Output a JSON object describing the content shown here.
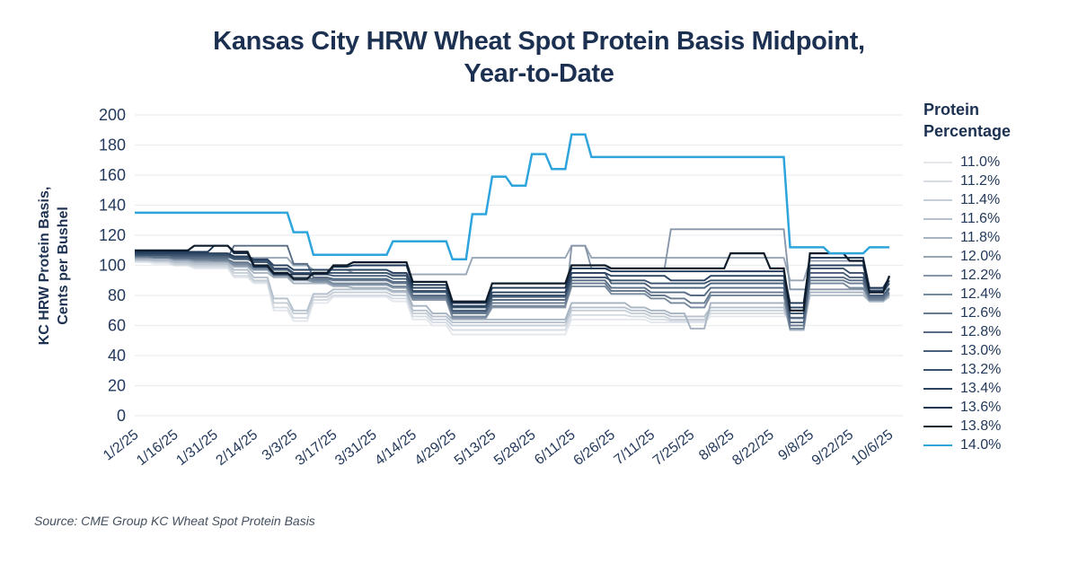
{
  "title": {
    "line1": "Kansas City HRW Wheat Spot Protein Basis Midpoint,",
    "line2": "Year-to-Date"
  },
  "y_axis": {
    "title_line1": "KC HRW Protein Basis,",
    "title_line2": "Cents per Bushel",
    "ticks": [
      0,
      20,
      40,
      60,
      80,
      100,
      120,
      140,
      160,
      180,
      200
    ]
  },
  "legend": {
    "title_line1": "Protein",
    "title_line2": "Percentage"
  },
  "source": "Source: CME Group KC Wheat Spot Protein Basis",
  "chart_data": {
    "type": "line",
    "title": "Kansas City HRW Wheat Spot Protein Basis Midpoint, Year-to-Date",
    "xlabel": "",
    "ylabel": "KC HRW Protein Basis, Cents per Bushel",
    "ylim": [
      0,
      200
    ],
    "ytick_step": 20,
    "grid": "horizontal",
    "legend_position": "right",
    "x_tick_labels": [
      "1/2/25",
      "1/16/25",
      "1/31/25",
      "2/14/25",
      "3/3/25",
      "3/17/25",
      "3/31/25",
      "4/14/25",
      "4/29/25",
      "5/13/25",
      "5/28/25",
      "6/11/25",
      "6/26/25",
      "7/11/25",
      "7/25/25",
      "8/8/25",
      "8/22/25",
      "9/8/25",
      "9/22/25",
      "10/6/25"
    ],
    "x": [
      "1/2/25",
      "1/9/25",
      "1/16/25",
      "1/23/25",
      "1/31/25",
      "2/7/25",
      "2/14/25",
      "2/21/25",
      "3/3/25",
      "3/10/25",
      "3/17/25",
      "3/24/25",
      "3/31/25",
      "4/7/25",
      "4/14/25",
      "4/21/25",
      "4/29/25",
      "5/6/25",
      "5/13/25",
      "5/20/25",
      "5/28/25",
      "6/4/25",
      "6/11/25",
      "6/18/25",
      "6/26/25",
      "7/3/25",
      "7/11/25",
      "7/18/25",
      "7/25/25",
      "8/1/25",
      "8/8/25",
      "8/15/25",
      "8/22/25",
      "9/1/25",
      "9/8/25",
      "9/15/25",
      "9/22/25",
      "9/29/25",
      "10/6/25"
    ],
    "series": [
      {
        "name": "11.0%",
        "color": "#E4E8ED",
        "values": [
          102,
          101,
          100,
          98,
          98,
          92,
          88,
          70,
          63,
          75,
          79,
          79,
          79,
          76,
          64,
          60,
          54,
          54,
          54,
          54,
          54,
          54,
          64,
          64,
          64,
          64,
          62,
          62,
          62,
          66,
          66,
          66,
          66,
          66,
          80,
          80,
          80,
          78,
          80
        ]
      },
      {
        "name": "11.2%",
        "color": "#D6DCE3",
        "values": [
          103,
          102,
          100,
          99,
          99,
          93,
          89,
          72,
          65,
          77,
          80,
          80,
          80,
          78,
          66,
          62,
          57,
          57,
          57,
          57,
          57,
          57,
          67,
          67,
          67,
          66,
          64,
          63,
          63,
          68,
          68,
          68,
          68,
          64,
          80,
          80,
          80,
          78,
          80
        ]
      },
      {
        "name": "11.4%",
        "color": "#C6CFD8",
        "values": [
          103,
          103,
          101,
          100,
          100,
          95,
          90,
          75,
          68,
          79,
          82,
          82,
          82,
          80,
          68,
          64,
          60,
          60,
          60,
          60,
          60,
          60,
          70,
          70,
          70,
          68,
          66,
          64,
          64,
          70,
          70,
          70,
          70,
          62,
          80,
          80,
          80,
          77,
          79
        ]
      },
      {
        "name": "11.6%",
        "color": "#B6C1CD",
        "values": [
          104,
          103,
          102,
          101,
          101,
          97,
          92,
          78,
          70,
          81,
          84,
          84,
          84,
          82,
          70,
          66,
          62,
          62,
          62,
          62,
          62,
          62,
          72,
          72,
          72,
          70,
          68,
          66,
          66,
          72,
          72,
          72,
          72,
          60,
          80,
          80,
          80,
          76,
          79
        ]
      },
      {
        "name": "11.8%",
        "color": "#A6B3C1",
        "values": [
          104,
          104,
          103,
          102,
          102,
          99,
          95,
          92,
          88,
          88,
          86,
          85,
          85,
          83,
          73,
          68,
          64,
          64,
          64,
          64,
          64,
          64,
          75,
          75,
          75,
          72,
          70,
          68,
          58,
          75,
          75,
          75,
          75,
          57,
          82,
          82,
          82,
          76,
          80
        ]
      },
      {
        "name": "12.0%",
        "color": "#97A5B5",
        "values": [
          105,
          105,
          105,
          105,
          105,
          105,
          105,
          105,
          100,
          97,
          97,
          95,
          95,
          94,
          94,
          94,
          94,
          105,
          105,
          105,
          105,
          105,
          113,
          105,
          105,
          105,
          105,
          105,
          105,
          105,
          105,
          105,
          105,
          90,
          103,
          103,
          103,
          84,
          84
        ]
      },
      {
        "name": "12.2%",
        "color": "#8797A9",
        "values": [
          105,
          105,
          104,
          103,
          103,
          100,
          97,
          93,
          90,
          89,
          87,
          87,
          87,
          85,
          77,
          77,
          65,
          65,
          72,
          72,
          72,
          72,
          113,
          98,
          98,
          98,
          98,
          124,
          124,
          124,
          124,
          124,
          124,
          84,
          84,
          84,
          84,
          80,
          82
        ]
      },
      {
        "name": "12.4%",
        "color": "#77899D",
        "values": [
          106,
          105,
          104,
          104,
          103,
          101,
          98,
          94,
          91,
          90,
          88,
          88,
          88,
          86,
          78,
          78,
          66,
          66,
          73,
          73,
          73,
          73,
          86,
          86,
          81,
          81,
          78,
          75,
          72,
          80,
          80,
          80,
          80,
          58,
          88,
          88,
          85,
          77,
          81
        ]
      },
      {
        "name": "12.6%",
        "color": "#687B91",
        "values": [
          106,
          105,
          105,
          104,
          104,
          102,
          99,
          95,
          92,
          91,
          90,
          90,
          90,
          88,
          79,
          79,
          68,
          68,
          75,
          75,
          75,
          75,
          88,
          88,
          83,
          83,
          80,
          78,
          75,
          82,
          82,
          82,
          82,
          60,
          90,
          90,
          88,
          78,
          82
        ]
      },
      {
        "name": "12.8%",
        "color": "#586D85",
        "values": [
          106,
          106,
          105,
          105,
          105,
          113,
          113,
          113,
          101,
          92,
          91,
          91,
          91,
          89,
          80,
          80,
          69,
          69,
          77,
          77,
          77,
          77,
          90,
          90,
          85,
          85,
          82,
          82,
          80,
          85,
          85,
          85,
          85,
          62,
          92,
          92,
          90,
          79,
          84
        ]
      },
      {
        "name": "13.0%",
        "color": "#485F79",
        "values": [
          107,
          107,
          106,
          106,
          106,
          104,
          102,
          97,
          94,
          94,
          93,
          93,
          93,
          91,
          82,
          82,
          70,
          70,
          79,
          79,
          79,
          79,
          95,
          95,
          88,
          88,
          85,
          85,
          85,
          88,
          88,
          88,
          88,
          65,
          95,
          95,
          92,
          80,
          85
        ]
      },
      {
        "name": "13.2%",
        "color": "#39516C",
        "values": [
          107,
          107,
          107,
          107,
          107,
          105,
          103,
          98,
          95,
          95,
          95,
          95,
          95,
          93,
          83,
          83,
          72,
          72,
          80,
          80,
          80,
          80,
          92,
          92,
          90,
          90,
          88,
          88,
          88,
          90,
          90,
          90,
          90,
          68,
          98,
          98,
          95,
          82,
          88
        ]
      },
      {
        "name": "13.4%",
        "color": "#2A4360",
        "values": [
          108,
          108,
          108,
          108,
          108,
          106,
          104,
          100,
          97,
          97,
          97,
          97,
          97,
          95,
          85,
          85,
          73,
          73,
          82,
          82,
          82,
          82,
          95,
          95,
          93,
          93,
          93,
          90,
          90,
          93,
          93,
          93,
          93,
          72,
          100,
          100,
          100,
          83,
          90
        ]
      },
      {
        "name": "13.6%",
        "color": "#1C3553",
        "values": [
          109,
          109,
          109,
          109,
          113,
          108,
          99,
          94,
          94,
          94,
          99,
          100,
          100,
          100,
          87,
          87,
          75,
          75,
          85,
          85,
          85,
          85,
          98,
          98,
          96,
          96,
          96,
          96,
          96,
          96,
          96,
          96,
          96,
          75,
          105,
          105,
          105,
          85,
          92
        ]
      },
      {
        "name": "13.8%",
        "color": "#0E1C2B",
        "values": [
          110,
          110,
          110,
          113,
          113,
          109,
          100,
          95,
          91,
          95,
          100,
          102,
          102,
          102,
          89,
          89,
          76,
          76,
          88,
          88,
          88,
          88,
          100,
          100,
          98,
          98,
          98,
          98,
          98,
          98,
          108,
          108,
          98,
          70,
          108,
          108,
          103,
          82,
          93
        ]
      },
      {
        "name": "14.0%",
        "color": "#2EA4DD",
        "values": [
          135,
          135,
          135,
          135,
          135,
          135,
          135,
          135,
          122,
          107,
          107,
          107,
          107,
          116,
          116,
          116,
          104,
          134,
          159,
          153,
          174,
          164,
          187,
          172,
          172,
          172,
          172,
          172,
          172,
          172,
          172,
          172,
          172,
          112,
          112,
          108,
          108,
          112,
          112
        ]
      }
    ]
  }
}
